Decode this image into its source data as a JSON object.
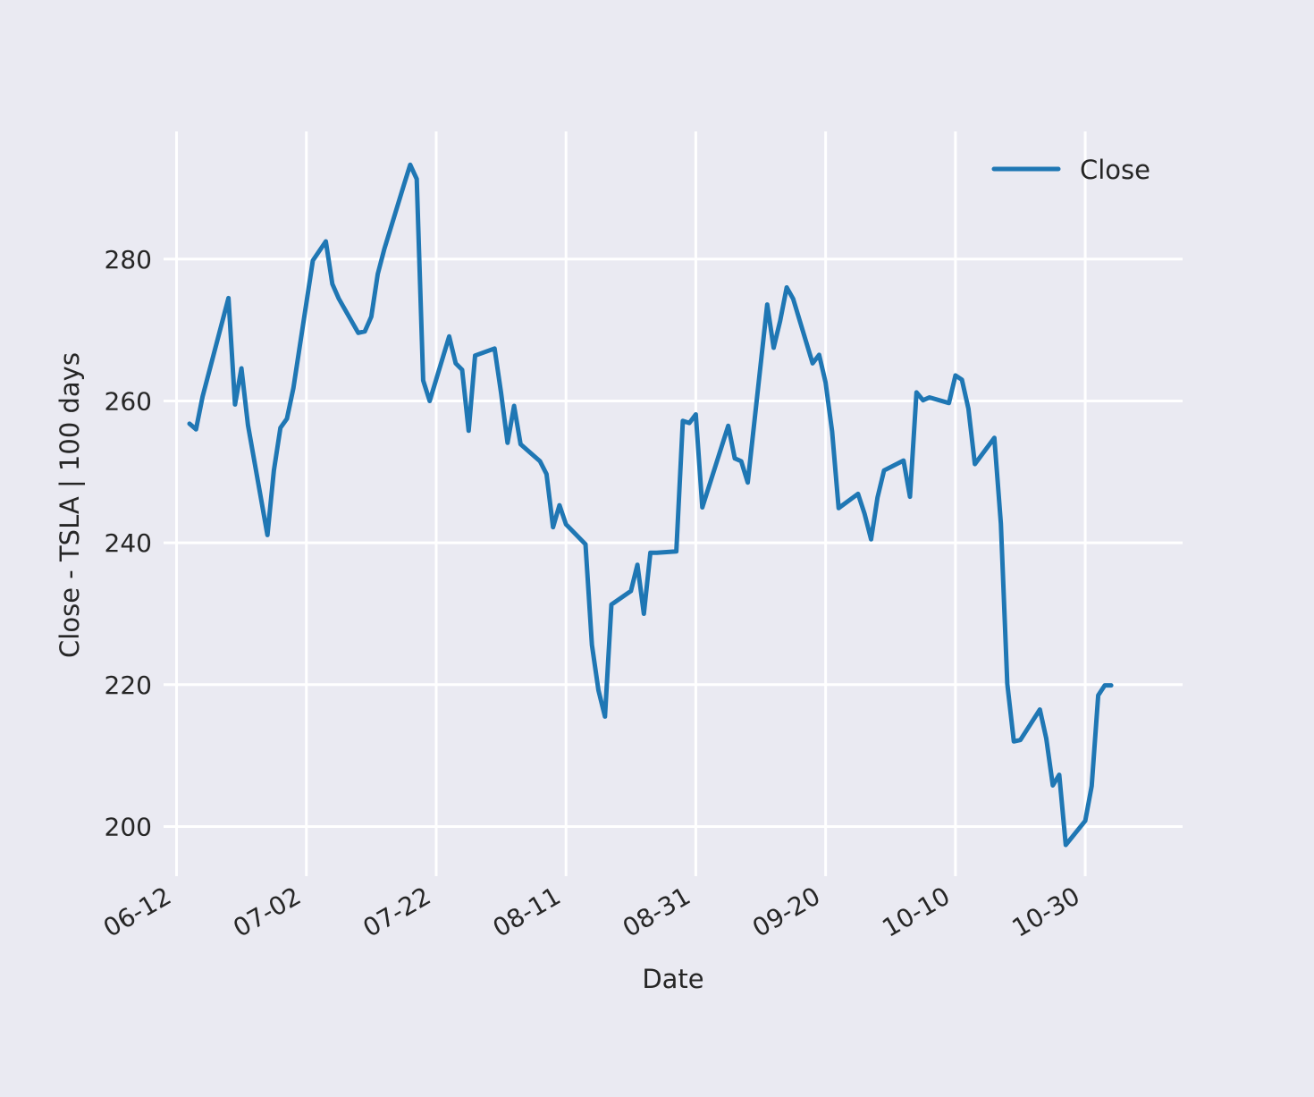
{
  "chart_data": {
    "type": "line",
    "title": "",
    "xlabel": "Date",
    "ylabel": "Close - TSLA | 100 days",
    "x_tick_labels": [
      "06-12",
      "07-02",
      "07-22",
      "08-11",
      "08-31",
      "09-20",
      "10-10",
      "10-30"
    ],
    "x_ticks": [
      "2023-06-12",
      "2023-07-02",
      "2023-07-22",
      "2023-08-11",
      "2023-08-31",
      "2023-09-20",
      "2023-10-10",
      "2023-10-30"
    ],
    "y_ticks": [
      200,
      220,
      240,
      260,
      280
    ],
    "xlim": [
      "2023-06-10",
      "2023-11-14"
    ],
    "ylim": [
      193,
      298
    ],
    "grid": true,
    "legend_position": "top-right",
    "series": [
      {
        "name": "Close",
        "color": "#1f77b4",
        "x": [
          "2023-06-14",
          "2023-06-15",
          "2023-06-16",
          "2023-06-20",
          "2023-06-21",
          "2023-06-22",
          "2023-06-23",
          "2023-06-26",
          "2023-06-27",
          "2023-06-28",
          "2023-06-29",
          "2023-06-30",
          "2023-07-03",
          "2023-07-05",
          "2023-07-06",
          "2023-07-07",
          "2023-07-10",
          "2023-07-11",
          "2023-07-12",
          "2023-07-13",
          "2023-07-14",
          "2023-07-17",
          "2023-07-18",
          "2023-07-19",
          "2023-07-20",
          "2023-07-21",
          "2023-07-24",
          "2023-07-25",
          "2023-07-26",
          "2023-07-27",
          "2023-07-28",
          "2023-07-31",
          "2023-08-01",
          "2023-08-02",
          "2023-08-03",
          "2023-08-04",
          "2023-08-07",
          "2023-08-08",
          "2023-08-09",
          "2023-08-10",
          "2023-08-11",
          "2023-08-14",
          "2023-08-15",
          "2023-08-16",
          "2023-08-17",
          "2023-08-18",
          "2023-08-21",
          "2023-08-22",
          "2023-08-23",
          "2023-08-24",
          "2023-08-25",
          "2023-08-28",
          "2023-08-29",
          "2023-08-30",
          "2023-08-31",
          "2023-09-01",
          "2023-09-05",
          "2023-09-06",
          "2023-09-07",
          "2023-09-08",
          "2023-09-11",
          "2023-09-12",
          "2023-09-13",
          "2023-09-14",
          "2023-09-15",
          "2023-09-18",
          "2023-09-19",
          "2023-09-20",
          "2023-09-21",
          "2023-09-22",
          "2023-09-25",
          "2023-09-26",
          "2023-09-27",
          "2023-09-28",
          "2023-09-29",
          "2023-10-02",
          "2023-10-03",
          "2023-10-04",
          "2023-10-05",
          "2023-10-06",
          "2023-10-09",
          "2023-10-10",
          "2023-10-11",
          "2023-10-12",
          "2023-10-13",
          "2023-10-16",
          "2023-10-17",
          "2023-10-18",
          "2023-10-19",
          "2023-10-20",
          "2023-10-23",
          "2023-10-24",
          "2023-10-25",
          "2023-10-26",
          "2023-10-27",
          "2023-10-30",
          "2023-10-31",
          "2023-11-01",
          "2023-11-02",
          "2023-11-03"
        ],
        "values": [
          256.8,
          256.0,
          260.6,
          274.5,
          259.5,
          264.6,
          256.6,
          241.1,
          250.2,
          256.2,
          257.5,
          261.8,
          279.8,
          282.5,
          276.5,
          274.4,
          269.6,
          269.8,
          271.9,
          277.9,
          281.4,
          290.4,
          293.3,
          291.3,
          262.9,
          260.0,
          269.1,
          265.3,
          264.4,
          255.8,
          266.4,
          267.4,
          261.1,
          254.1,
          259.3,
          253.9,
          251.5,
          249.7,
          242.2,
          245.3,
          242.6,
          239.8,
          225.6,
          219.2,
          215.5,
          231.3,
          233.2,
          236.9,
          230.0,
          238.6,
          238.6,
          238.8,
          257.2,
          256.9,
          258.1,
          245.0,
          256.5,
          251.9,
          251.5,
          248.5,
          273.6,
          267.5,
          271.3,
          276.0,
          274.4,
          265.3,
          266.5,
          262.6,
          255.7,
          244.9,
          246.9,
          244.1,
          240.5,
          246.4,
          250.2,
          251.6,
          246.5,
          261.2,
          260.1,
          260.5,
          259.7,
          263.6,
          263.0,
          258.9,
          251.1,
          254.8,
          242.7,
          220.1,
          212.0,
          212.2,
          216.5,
          212.4,
          205.8,
          207.3,
          197.4,
          200.8,
          205.7,
          218.5,
          219.9,
          219.9
        ]
      }
    ]
  }
}
